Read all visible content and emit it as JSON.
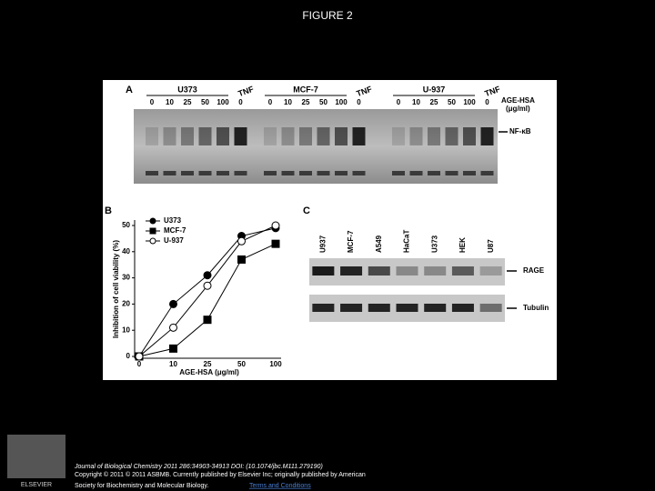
{
  "header": {
    "title": "FIGURE 2"
  },
  "panel_a": {
    "label": "A",
    "groups": [
      {
        "name": "U373",
        "lanes": [
          "0",
          "10",
          "25",
          "50",
          "100",
          "0"
        ],
        "treatment": "TNF"
      },
      {
        "name": "MCF-7",
        "lanes": [
          "0",
          "10",
          "25",
          "50",
          "100",
          "0"
        ],
        "treatment": "TNF"
      },
      {
        "name": "U-937",
        "lanes": [
          "0",
          "10",
          "25",
          "50",
          "100",
          "0"
        ],
        "treatment": "TNF"
      }
    ],
    "dose_label": "AGE-HSA",
    "dose_unit": "(μg/ml)",
    "band": "NF-κB"
  },
  "chart_data": {
    "type": "line",
    "label": "B",
    "categories": [
      "0",
      "10",
      "25",
      "50",
      "100"
    ],
    "series": [
      {
        "name": "U373",
        "color": "#000000",
        "marker": "circle",
        "filled": true,
        "values": [
          0,
          20,
          31,
          46,
          49
        ]
      },
      {
        "name": "MCF-7",
        "color": "#000000",
        "marker": "square",
        "filled": true,
        "values": [
          0,
          3,
          14,
          37,
          43
        ]
      },
      {
        "name": "U-937",
        "color": "#000000",
        "marker": "circle",
        "filled": false,
        "values": [
          0,
          11,
          27,
          44,
          50
        ]
      }
    ],
    "ylim": [
      0,
      50
    ],
    "yticks": [
      0,
      10,
      20,
      30,
      40,
      50
    ],
    "xlabel": "AGE-HSA (μg/ml)",
    "ylabel": "Inhibition of cell viability (%)",
    "legend": "upper-left"
  },
  "panel_c": {
    "label": "C",
    "lanes": [
      "U937",
      "MCF-7",
      "A549",
      "HaCaT",
      "U373",
      "HEK",
      "U87"
    ],
    "bands": [
      "RAGE",
      "Tubulin"
    ]
  },
  "footer": {
    "citation": "Journal of Biological Chemistry 2011 286:34903-34913 DOI: (10.1074/jbc.M111.279190)",
    "copyright": "Copyright © 2011 © 2011 ASBMB. Currently published by Elsevier Inc; originally published by American",
    "copyright_cont": "Society for Biochemistry and Molecular Biology.",
    "link": "Terms and Conditions",
    "publisher": "ELSEVIER"
  }
}
